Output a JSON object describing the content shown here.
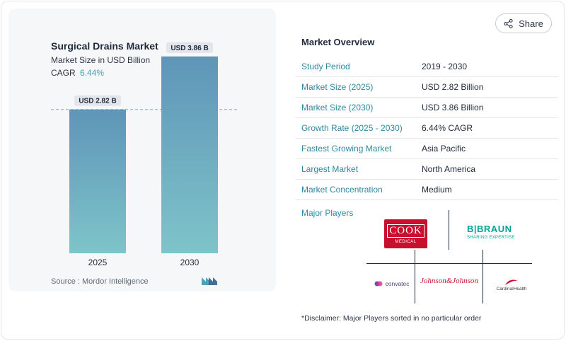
{
  "chart_card": {
    "title": "Surgical Drains Market",
    "subtitle": "Market Size in USD Billion",
    "cagr_label": "CAGR",
    "cagr_value": "6.44%",
    "source": "Source :  Mordor Intelligence"
  },
  "chart_data": {
    "type": "bar",
    "title": "Surgical Drains Market",
    "ylabel": "Market Size in USD Billion",
    "categories": [
      "2025",
      "2030"
    ],
    "values": [
      2.82,
      3.86
    ],
    "data_labels": [
      "USD 2.82 B",
      "USD 3.86 B"
    ],
    "ylim": [
      0,
      4.8
    ],
    "reference_line_value": 2.82,
    "colors": {
      "bar_top": "#5f95b8",
      "bar_bottom": "#7ec4c9",
      "label_bg": "#e2e6ea",
      "ref_line": "#8aa7bd"
    }
  },
  "share": {
    "label": "Share",
    "icon": "share-icon"
  },
  "overview": {
    "title": "Market Overview",
    "rows": [
      {
        "key": "Study Period",
        "value": "2019 - 2030"
      },
      {
        "key": "Market Size (2025)",
        "value": "USD 2.82 Billion"
      },
      {
        "key": "Market Size (2030)",
        "value": "USD 3.86 Billion"
      },
      {
        "key": "Growth Rate (2025 - 2030)",
        "value": "6.44% CAGR"
      },
      {
        "key": "Fastest Growing Market",
        "value": "Asia Pacific"
      },
      {
        "key": "Largest Market",
        "value": "North America"
      },
      {
        "key": "Market Concentration",
        "value": "Medium"
      }
    ]
  },
  "major_players": {
    "title": "Major Players",
    "players": [
      {
        "name": "COOK",
        "sub": "MEDICAL"
      },
      {
        "name": "B|BRAUN",
        "sub": "SHARING EXPERTISE"
      },
      {
        "name": "convatec",
        "sub": ""
      },
      {
        "name": "Johnson&Johnson",
        "sub": ""
      },
      {
        "name": "CardinalHealth",
        "sub": ""
      }
    ]
  },
  "disclaimer": "*Disclaimer: Major Players sorted in no particular order",
  "accent_color": "#2b8aa0"
}
